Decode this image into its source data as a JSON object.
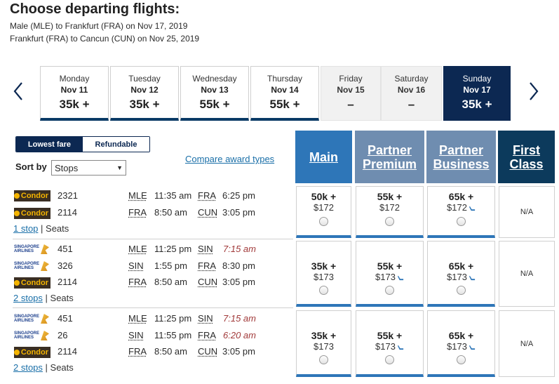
{
  "header": {
    "title": "Choose departing flights:",
    "route1": "Male (MLE) to Frankfurt (FRA) on Nov 17, 2019",
    "route2": "Frankfurt (FRA) to Cancun (CUN) on Nov 25, 2019"
  },
  "calendar": {
    "days": [
      {
        "name": "Monday",
        "date": "Nov 11",
        "price": "35k +"
      },
      {
        "name": "Tuesday",
        "date": "Nov 12",
        "price": "35k +"
      },
      {
        "name": "Wednesday",
        "date": "Nov 13",
        "price": "55k +"
      },
      {
        "name": "Thursday",
        "date": "Nov 14",
        "price": "55k +"
      },
      {
        "name": "Friday",
        "date": "Nov 15",
        "price": "–"
      },
      {
        "name": "Saturday",
        "date": "Nov 16",
        "price": "–"
      },
      {
        "name": "Sunday",
        "date": "Nov 17",
        "price": "35k +"
      }
    ]
  },
  "filters": {
    "lowest_fare": "Lowest fare",
    "refundable": "Refundable",
    "sort_label": "Sort by",
    "sort_value": "Stops",
    "compare_link": "Compare award types"
  },
  "columns": {
    "main": "Main",
    "partner_premium_1": "Partner",
    "partner_premium_2": "Premium",
    "partner_business_1": "Partner",
    "partner_business_2": "Business",
    "first_1": "First",
    "first_2": "Class"
  },
  "flights": [
    {
      "segments": [
        {
          "airline": "Condor",
          "flight": "2321",
          "from": "MLE",
          "dep": "11:35 am",
          "to": "FRA",
          "arr": "6:25 pm"
        },
        {
          "airline": "Condor",
          "flight": "2114",
          "from": "FRA",
          "dep": "8:50 am",
          "to": "CUN",
          "arr": "3:05 pm"
        }
      ],
      "stops": "1 stop",
      "seats": "Seats",
      "main": {
        "pts": "50k +",
        "usd": "$172"
      },
      "pp": {
        "pts": "55k +",
        "usd": "$172"
      },
      "pb": {
        "pts": "65k +",
        "usd": "$172"
      },
      "first": "N/A"
    },
    {
      "segments": [
        {
          "airline": "SINGAPORE AIRLINES",
          "flight": "451",
          "from": "MLE",
          "dep": "11:25 pm",
          "to": "SIN",
          "arr": "7:15 am"
        },
        {
          "airline": "SINGAPORE AIRLINES",
          "flight": "326",
          "from": "SIN",
          "dep": "1:55 pm",
          "to": "FRA",
          "arr": "8:30 pm"
        },
        {
          "airline": "Condor",
          "flight": "2114",
          "from": "FRA",
          "dep": "8:50 am",
          "to": "CUN",
          "arr": "3:05 pm"
        }
      ],
      "stops": "2 stops",
      "seats": "Seats",
      "main": {
        "pts": "35k +",
        "usd": "$173"
      },
      "pp": {
        "pts": "55k +",
        "usd": "$173"
      },
      "pb": {
        "pts": "65k +",
        "usd": "$173"
      },
      "first": "N/A"
    },
    {
      "segments": [
        {
          "airline": "SINGAPORE AIRLINES",
          "flight": "451",
          "from": "MLE",
          "dep": "11:25 pm",
          "to": "SIN",
          "arr": "7:15 am"
        },
        {
          "airline": "SINGAPORE AIRLINES",
          "flight": "26",
          "from": "SIN",
          "dep": "11:55 pm",
          "to": "FRA",
          "arr": "6:20 am"
        },
        {
          "airline": "Condor",
          "flight": "2114",
          "from": "FRA",
          "dep": "8:50 am",
          "to": "CUN",
          "arr": "3:05 pm"
        }
      ],
      "stops": "2 stops",
      "seats": "Seats",
      "main": {
        "pts": "35k +",
        "usd": "$173"
      },
      "pp": {
        "pts": "55k +",
        "usd": "$173"
      },
      "pb": {
        "pts": "65k +",
        "usd": "$173"
      },
      "first": "N/A"
    }
  ],
  "colors": {
    "navy": "#0c2852",
    "main_blue": "#2e76b8",
    "partner_blue": "#6f8db0",
    "first_navy": "#0c3a5c",
    "link": "#1a6fa8"
  }
}
